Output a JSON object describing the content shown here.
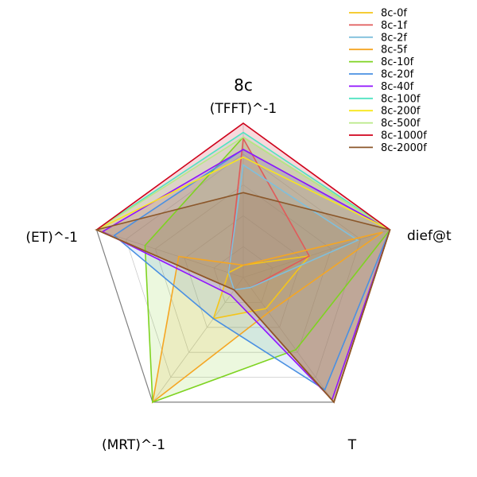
{
  "chart_data": {
    "type": "radar",
    "title": "8c",
    "axes": [
      "(TFFT)^-1",
      "dief@t",
      "T",
      "(MRT)^-1",
      "(ET)^-1"
    ],
    "rlim": [
      0,
      1
    ],
    "grid": true,
    "legend_position": "top-right",
    "series": [
      {
        "name": "8c-0f",
        "color": "#f5c518",
        "values": [
          0.08,
          0.45,
          0.25,
          0.33,
          0.1
        ]
      },
      {
        "name": "8c-1f",
        "color": "#e05a5a",
        "values": [
          0.9,
          0.45,
          0.08,
          0.1,
          0.1
        ]
      },
      {
        "name": "8c-2f",
        "color": "#7fbfdc",
        "values": [
          0.73,
          0.78,
          0.08,
          0.1,
          0.1
        ]
      },
      {
        "name": "8c-5f",
        "color": "#f5a623",
        "values": [
          0.08,
          0.95,
          0.28,
          1.0,
          0.44
        ]
      },
      {
        "name": "8c-10f",
        "color": "#7ed321",
        "values": [
          0.91,
          1.0,
          0.58,
          1.0,
          0.67
        ]
      },
      {
        "name": "8c-20f",
        "color": "#4a90e2",
        "values": [
          0.83,
          1.0,
          0.9,
          0.33,
          0.88
        ]
      },
      {
        "name": "8c-40f",
        "color": "#9013fe",
        "values": [
          0.83,
          1.0,
          0.98,
          0.14,
          0.96
        ]
      },
      {
        "name": "8c-100f",
        "color": "#50e3c2",
        "values": [
          0.94,
          1.0,
          1.0,
          0.1,
          1.0
        ]
      },
      {
        "name": "8c-200f",
        "color": "#f8e71c",
        "values": [
          0.78,
          1.0,
          1.0,
          0.1,
          1.0
        ]
      },
      {
        "name": "8c-500f",
        "color": "#b8e986",
        "values": [
          0.91,
          1.0,
          1.0,
          0.1,
          1.0
        ]
      },
      {
        "name": "8c-1000f",
        "color": "#d0021b",
        "values": [
          1.0,
          1.0,
          1.0,
          0.1,
          1.0
        ]
      },
      {
        "name": "8c-2000f",
        "color": "#8b572a",
        "values": [
          0.55,
          1.0,
          1.0,
          0.1,
          1.0
        ]
      }
    ]
  }
}
